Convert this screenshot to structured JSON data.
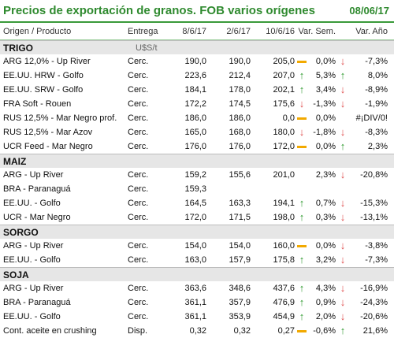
{
  "title": "Precios de exportación de granos. FOB varios orígenes",
  "date": "08/06/17",
  "columns": [
    "Origen / Producto",
    "Entrega",
    "8/6/17",
    "2/6/17",
    "10/6/16",
    "Var. Sem.",
    "Var. Año"
  ],
  "sections": [
    {
      "name": "TRIGO",
      "unit": "U$S/t",
      "rows": [
        {
          "prod": "ARG 12,0% - Up River",
          "ent": "Cerc.",
          "v1": "190,0",
          "v2": "190,0",
          "v3": "205,0",
          "i1": "dash",
          "sem": "0,0%",
          "i2": "down",
          "ano": "-7,3%"
        },
        {
          "prod": "EE.UU. HRW - Golfo",
          "ent": "Cerc.",
          "v1": "223,6",
          "v2": "212,4",
          "v3": "207,0",
          "i1": "up",
          "sem": "5,3%",
          "i2": "up",
          "ano": "8,0%"
        },
        {
          "prod": "EE.UU. SRW - Golfo",
          "ent": "Cerc.",
          "v1": "184,1",
          "v2": "178,0",
          "v3": "202,1",
          "i1": "up",
          "sem": "3,4%",
          "i2": "down",
          "ano": "-8,9%"
        },
        {
          "prod": "FRA Soft - Rouen",
          "ent": "Cerc.",
          "v1": "172,2",
          "v2": "174,5",
          "v3": "175,6",
          "i1": "down",
          "sem": "-1,3%",
          "i2": "down",
          "ano": "-1,9%"
        },
        {
          "prod": "RUS 12,5% - Mar Negro prof.",
          "ent": "Cerc.",
          "v1": "186,0",
          "v2": "186,0",
          "v3": "0,0",
          "i1": "dash",
          "sem": "0,0%",
          "i2": "",
          "ano": "#¡DIV/0!"
        },
        {
          "prod": "RUS 12,5% - Mar Azov",
          "ent": "Cerc.",
          "v1": "165,0",
          "v2": "168,0",
          "v3": "180,0",
          "i1": "down",
          "sem": "-1,8%",
          "i2": "down",
          "ano": "-8,3%"
        },
        {
          "prod": "UCR Feed - Mar Negro",
          "ent": "Cerc.",
          "v1": "176,0",
          "v2": "176,0",
          "v3": "172,0",
          "i1": "dash",
          "sem": "0,0%",
          "i2": "up",
          "ano": "2,3%"
        }
      ]
    },
    {
      "name": "MAIZ",
      "unit": "",
      "rows": [
        {
          "prod": "ARG - Up River",
          "ent": "Cerc.",
          "v1": "159,2",
          "v2": "155,6",
          "v3": "201,0",
          "i1": "",
          "sem": "2,3%",
          "i2": "down",
          "ano": "-20,8%"
        },
        {
          "prod": "BRA - Paranaguá",
          "ent": "Cerc.",
          "v1": "159,3",
          "v2": "",
          "v3": "",
          "i1": "",
          "sem": "",
          "i2": "",
          "ano": ""
        },
        {
          "prod": "EE.UU. - Golfo",
          "ent": "Cerc.",
          "v1": "164,5",
          "v2": "163,3",
          "v3": "194,1",
          "i1": "up",
          "sem": "0,7%",
          "i2": "down",
          "ano": "-15,3%"
        },
        {
          "prod": "UCR - Mar Negro",
          "ent": "Cerc.",
          "v1": "172,0",
          "v2": "171,5",
          "v3": "198,0",
          "i1": "up",
          "sem": "0,3%",
          "i2": "down",
          "ano": "-13,1%"
        }
      ]
    },
    {
      "name": "SORGO",
      "unit": "",
      "rows": [
        {
          "prod": "ARG - Up River",
          "ent": "Cerc.",
          "v1": "154,0",
          "v2": "154,0",
          "v3": "160,0",
          "i1": "dash",
          "sem": "0,0%",
          "i2": "down",
          "ano": "-3,8%"
        },
        {
          "prod": "EE.UU. - Golfo",
          "ent": "Cerc.",
          "v1": "163,0",
          "v2": "157,9",
          "v3": "175,8",
          "i1": "up",
          "sem": "3,2%",
          "i2": "down",
          "ano": "-7,3%"
        }
      ]
    },
    {
      "name": "SOJA",
      "unit": "",
      "rows": [
        {
          "prod": "ARG - Up River",
          "ent": "Cerc.",
          "v1": "363,6",
          "v2": "348,6",
          "v3": "437,6",
          "i1": "up",
          "sem": "4,3%",
          "i2": "down",
          "ano": "-16,9%"
        },
        {
          "prod": "BRA - Paranaguá",
          "ent": "Cerc.",
          "v1": "361,1",
          "v2": "357,9",
          "v3": "476,9",
          "i1": "up",
          "sem": "0,9%",
          "i2": "down",
          "ano": "-24,3%"
        },
        {
          "prod": "EE.UU. - Golfo",
          "ent": "Cerc.",
          "v1": "361,1",
          "v2": "353,9",
          "v3": "454,9",
          "i1": "up",
          "sem": "2,0%",
          "i2": "down",
          "ano": "-20,6%"
        },
        {
          "prod": "Cont. aceite en crushing",
          "ent": "Disp.",
          "v1": "0,32",
          "v2": "0,32",
          "v3": "0,27",
          "i1": "dash",
          "sem": "-0,6%",
          "i2": "up",
          "ano": "21,6%"
        }
      ]
    }
  ]
}
